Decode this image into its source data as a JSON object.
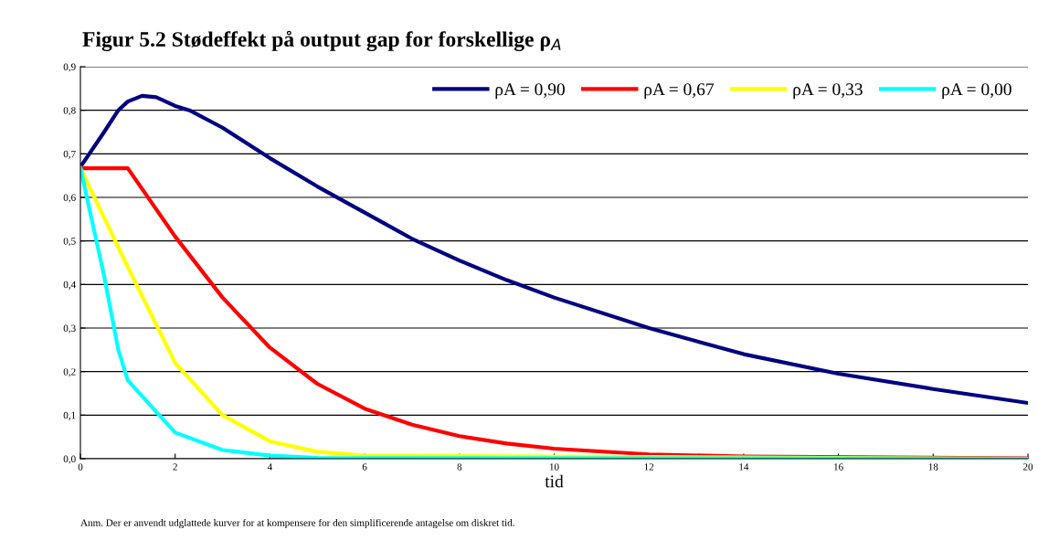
{
  "chart_data": {
    "type": "line",
    "title": "Figur 5.2 Stødeffekt på output gap for forskellige ρ$_{A}$",
    "xlabel": "tid",
    "annotations": [
      "Anm. Der er anvendt udglattede kurver for at kompensere for den simplificerende antagelse om diskret tid."
    ],
    "series": [
      {
        "name": "ρA = 0,90",
        "color": "#000080",
        "x": [
          0,
          0.5,
          0.8,
          1,
          1.3,
          1.6,
          2,
          2.3,
          3,
          4,
          5,
          6,
          7,
          8,
          9,
          10,
          12,
          14,
          16,
          18,
          20
        ],
        "values": [
          0.67,
          0.75,
          0.8,
          0.82,
          0.833,
          0.83,
          0.81,
          0.8,
          0.76,
          0.69,
          0.625,
          0.565,
          0.505,
          0.455,
          0.41,
          0.37,
          0.3,
          0.24,
          0.195,
          0.16,
          0.128
        ]
      },
      {
        "name": "ρA = 0,67",
        "color": "#ff0000",
        "x": [
          0,
          1,
          2,
          3,
          4,
          5,
          6,
          7,
          8,
          9,
          10,
          12,
          14,
          20
        ],
        "values": [
          0.667,
          0.667,
          0.51,
          0.37,
          0.255,
          0.172,
          0.115,
          0.078,
          0.052,
          0.035,
          0.023,
          0.01,
          0.005,
          0.001
        ]
      },
      {
        "name": "ρA = 0,33",
        "color": "#ffff00",
        "x": [
          0,
          1,
          2,
          2.5,
          3,
          4,
          5,
          6,
          20
        ],
        "values": [
          0.667,
          0.44,
          0.22,
          0.16,
          0.1,
          0.04,
          0.016,
          0.007,
          0
        ]
      },
      {
        "name": "ρA = 0,00",
        "color": "#00ffff",
        "x": [
          0,
          0.5,
          0.8,
          1,
          1.5,
          2,
          3,
          4,
          5,
          20
        ],
        "values": [
          0.667,
          0.42,
          0.25,
          0.18,
          0.12,
          0.06,
          0.02,
          0.007,
          0.002,
          0
        ]
      }
    ],
    "xlim": [
      0,
      20
    ],
    "xticks": [
      0,
      2,
      4,
      6,
      8,
      10,
      12,
      14,
      16,
      18,
      20
    ],
    "ylim": [
      0,
      0.9
    ],
    "yticks": [
      {
        "value": 0,
        "label": "0,0"
      },
      {
        "value": 0.1,
        "label": "0,1"
      },
      {
        "value": 0.2,
        "label": "0,2"
      },
      {
        "value": 0.3,
        "label": "0,3"
      },
      {
        "value": 0.4,
        "label": "0,4"
      },
      {
        "value": 0.5,
        "label": "0,5"
      },
      {
        "value": 0.6,
        "label": "0,6"
      },
      {
        "value": 0.7,
        "label": "0,7"
      },
      {
        "value": 0.8,
        "label": "0,8"
      },
      {
        "value": 0.9,
        "label": "0,9"
      }
    ],
    "grid": "y",
    "legend": "top right",
    "marker": "none",
    "line_style": "solid"
  }
}
